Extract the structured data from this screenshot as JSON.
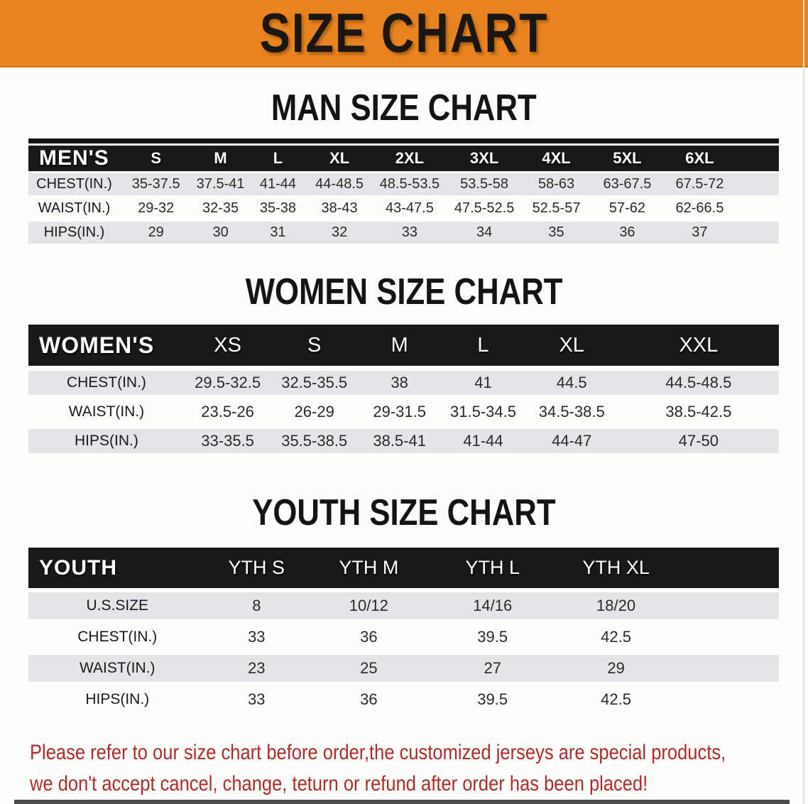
{
  "banner": {
    "title": "SIZE CHART"
  },
  "colors": {
    "banner_bg": "#E8831F",
    "header_bg": "#191919",
    "row_alt_bg": "#E4E5E7",
    "footer_text": "#AE2B2B",
    "title_color": "#141414"
  },
  "sections": {
    "men": {
      "title": "MAN SIZE CHART",
      "corner_label": "MEN'S",
      "columns": [
        "S",
        "M",
        "L",
        "XL",
        "2XL",
        "3XL",
        "4XL",
        "5XL",
        "6XL"
      ],
      "rows": [
        {
          "label": "CHEST(IN.)",
          "values": [
            "35-37.5",
            "37.5-41",
            "41-44",
            "44-48.5",
            "48.5-53.5",
            "53.5-58",
            "58-63",
            "63-67.5",
            "67.5-72"
          ]
        },
        {
          "label": "WAIST(IN.)",
          "values": [
            "29-32",
            "32-35",
            "35-38",
            "38-43",
            "43-47.5",
            "47.5-52.5",
            "52.5-57",
            "57-62",
            "62-66.5"
          ]
        },
        {
          "label": "HIPS(IN.)",
          "values": [
            "29",
            "30",
            "31",
            "32",
            "33",
            "34",
            "35",
            "36",
            "37"
          ]
        }
      ]
    },
    "women": {
      "title": "WOMEN SIZE CHART",
      "corner_label": "WOMEN'S",
      "columns": [
        "XS",
        "S",
        "M",
        "L",
        "XL",
        "XXL"
      ],
      "rows": [
        {
          "label": "CHEST(IN.)",
          "values": [
            "29.5-32.5",
            "32.5-35.5",
            "38",
            "41",
            "44.5",
            "44.5-48.5"
          ]
        },
        {
          "label": "WAIST(IN.)",
          "values": [
            "23.5-26",
            "26-29",
            "29-31.5",
            "31.5-34.5",
            "34.5-38.5",
            "38.5-42.5"
          ]
        },
        {
          "label": "HIPS(IN.)",
          "values": [
            "33-35.5",
            "35.5-38.5",
            "38.5-41",
            "41-44",
            "44-47",
            "47-50"
          ]
        }
      ]
    },
    "youth": {
      "title": "YOUTH SIZE CHART",
      "corner_label": "YOUTH",
      "columns": [
        "YTH S",
        "YTH M",
        "YTH L",
        "YTH XL"
      ],
      "rows": [
        {
          "label": "U.S.SIZE",
          "values": [
            "8",
            "10/12",
            "14/16",
            "18/20"
          ]
        },
        {
          "label": "CHEST(IN.)",
          "values": [
            "33",
            "36",
            "39.5",
            "42.5"
          ]
        },
        {
          "label": "WAIST(IN.)",
          "values": [
            "23",
            "25",
            "27",
            "29"
          ]
        },
        {
          "label": "HIPS(IN.)",
          "values": [
            "33",
            "36",
            "39.5",
            "42.5"
          ]
        }
      ]
    }
  },
  "footer": {
    "line1": "Please refer to our size chart before order,the customized jerseys are special products,",
    "line2": "we don't accept cancel, change, teturn or refund after order has been placed!"
  }
}
